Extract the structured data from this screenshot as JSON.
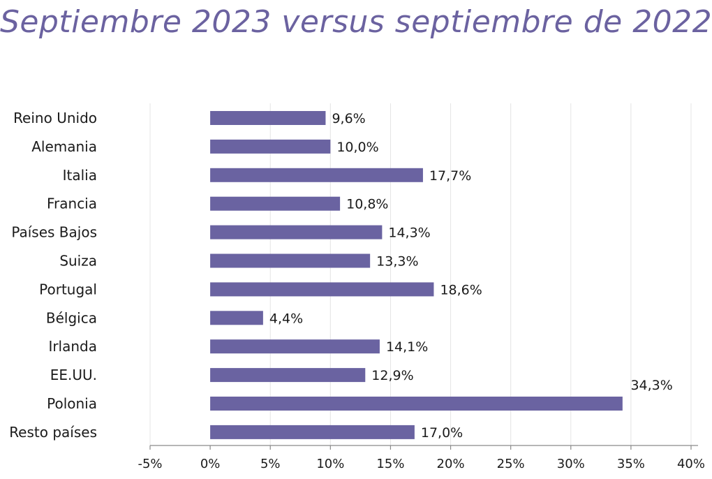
{
  "chart_data": {
    "type": "bar",
    "orientation": "horizontal",
    "title": "Septiembre 2023 versus septiembre de 2022",
    "categories": [
      "Reino Unido",
      "Alemania",
      "Italia",
      "Francia",
      "Países Bajos",
      "Suiza",
      "Portugal",
      "Bélgica",
      "Irlanda",
      "EE.UU.",
      "Polonia",
      "Resto países"
    ],
    "values": [
      9.6,
      10.0,
      17.7,
      10.8,
      14.3,
      13.3,
      18.6,
      4.4,
      14.1,
      12.9,
      34.3,
      17.0
    ],
    "data_labels": [
      "9,6%",
      "10,0%",
      "17,7%",
      "10,8%",
      "14,3%",
      "13,3%",
      "18,6%",
      "4,4%",
      "14,1%",
      "12,9%",
      "34,3%",
      "17,0%"
    ],
    "xlim": [
      -5,
      40
    ],
    "x_ticks": [
      -5,
      0,
      5,
      10,
      15,
      20,
      25,
      30,
      35,
      40
    ],
    "x_tick_labels": [
      "-5%",
      "0%",
      "5%",
      "10%",
      "15%",
      "20%",
      "25%",
      "30%",
      "35%",
      "40%"
    ],
    "xlabel": "",
    "ylabel": "",
    "grid": true,
    "bar_color": "#6a63a1",
    "title_color": "#6b62a0"
  }
}
